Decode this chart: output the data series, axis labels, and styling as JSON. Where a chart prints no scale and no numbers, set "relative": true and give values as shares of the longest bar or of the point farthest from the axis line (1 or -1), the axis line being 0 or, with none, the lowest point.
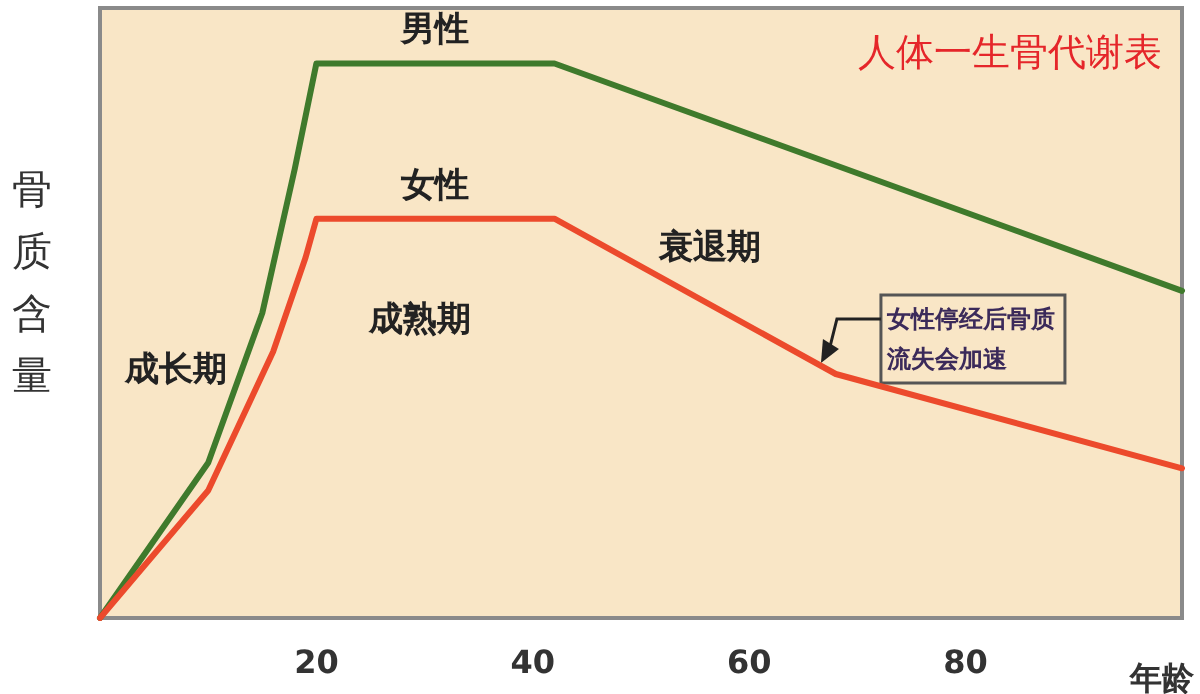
{
  "chart_data": {
    "type": "line",
    "title": "人体一生骨代谢表",
    "xlabel": "年龄",
    "ylabel": "骨质含量",
    "relative": true,
    "xlim": [
      0,
      100
    ],
    "xticks": [
      20,
      40,
      60,
      80
    ],
    "grid": false,
    "legend": false,
    "marker": "none",
    "line_style": "solid",
    "series": [
      {
        "name": "男性",
        "color": "#3f7a2c",
        "x": [
          0,
          10,
          15,
          18,
          20,
          42,
          100
        ],
        "values": [
          0,
          0.28,
          0.55,
          0.81,
          1,
          1,
          0.59
        ]
      },
      {
        "name": "女性",
        "color": "#ec4a2c",
        "x": [
          0,
          10,
          16,
          19,
          20,
          42,
          68,
          100
        ],
        "values": [
          0,
          0.23,
          0.48,
          0.65,
          0.72,
          0.72,
          0.44,
          0.27
        ]
      }
    ],
    "annotations": [
      "成长期",
      "成熟期",
      "衰退期",
      {
        "text": "女性停经后骨质流失会加速",
        "x": 67,
        "y": 0.46
      }
    ]
  }
}
